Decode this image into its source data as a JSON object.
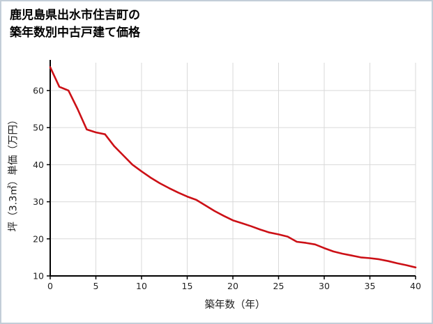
{
  "title": {
    "line1": "鹿児島県出水市住吉町の",
    "line2": "築年数別中古戸建て価格"
  },
  "chart_data": {
    "type": "line",
    "title": "鹿児島県出水市住吉町の築年数別中古戸建て価格",
    "xlabel": "築年数（年）",
    "ylabel": "坪（3.3㎡）単価（万円）",
    "x": [
      0,
      1,
      2,
      3,
      4,
      5,
      6,
      7,
      8,
      9,
      10,
      11,
      12,
      13,
      14,
      15,
      16,
      17,
      18,
      19,
      20,
      21,
      22,
      23,
      24,
      25,
      26,
      27,
      28,
      29,
      30,
      31,
      32,
      33,
      34,
      35,
      36,
      37,
      38,
      39,
      40
    ],
    "values": [
      66.3,
      61,
      60,
      55,
      49.5,
      48.7,
      48.2,
      45,
      42.5,
      40,
      38.2,
      36.5,
      35,
      33.7,
      32.5,
      31.4,
      30.5,
      29,
      27.5,
      26.2,
      25,
      24.2,
      23.4,
      22.5,
      21.7,
      21.2,
      20.6,
      19.2,
      18.9,
      18.5,
      17.5,
      16.6,
      16,
      15.5,
      15,
      14.8,
      14.5,
      14,
      13.4,
      12.9,
      12.3
    ],
    "xlim": [
      0,
      40
    ],
    "ylim": [
      10,
      67.5
    ],
    "xticks": [
      0,
      5,
      10,
      15,
      20,
      25,
      30,
      35,
      40
    ],
    "yticks": [
      10,
      20,
      30,
      40,
      50,
      60
    ],
    "grid": true,
    "legend": "none",
    "line_color": "#cc1016",
    "grid_color": "#d9d9d9",
    "axis_color": "#000000"
  }
}
